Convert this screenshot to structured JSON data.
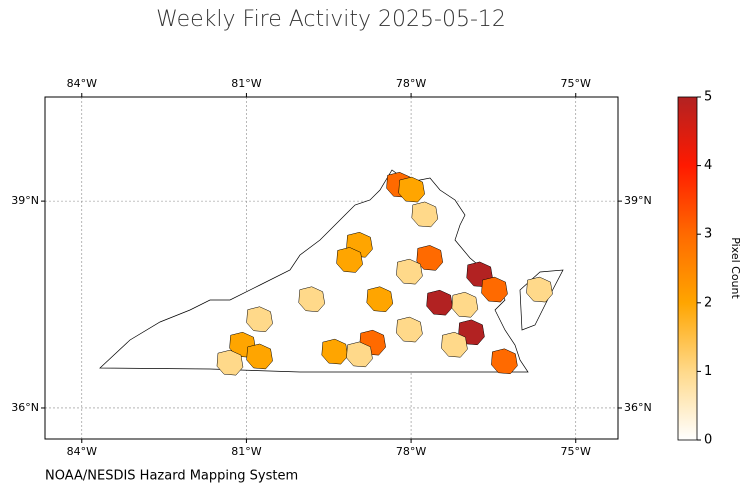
{
  "chart_data": {
    "type": "map",
    "title": "Weekly Fire Activity 2025-05-12",
    "source": "NOAA/NESDIS Hazard Mapping System",
    "xlim": [
      -84.67,
      -74.23
    ],
    "ylim": [
      35.55,
      40.51
    ],
    "xticks": [
      {
        "value": -84,
        "label": "84°W"
      },
      {
        "value": -81,
        "label": "81°W"
      },
      {
        "value": -78,
        "label": "78°W"
      },
      {
        "value": -75,
        "label": "75°W"
      }
    ],
    "yticks": [
      {
        "value": 36,
        "label": "36°N"
      },
      {
        "value": 39,
        "label": "39°N"
      }
    ],
    "grid": true,
    "colorbar": {
      "label": "Pixel Count",
      "clim": [
        0,
        5
      ],
      "ticks": [
        0,
        1,
        2,
        3,
        4,
        5
      ],
      "colors": [
        "#ffffff",
        "#ffd98a",
        "#ffa500",
        "#ff6a00",
        "#ff1a00",
        "#b22222"
      ]
    },
    "fire_areas": [
      {
        "lon": -78.21,
        "lat": 39.23,
        "value": 3
      },
      {
        "lon": -77.99,
        "lat": 39.16,
        "value": 2
      },
      {
        "lon": -78.94,
        "lat": 38.36,
        "value": 2
      },
      {
        "lon": -79.12,
        "lat": 38.14,
        "value": 2
      },
      {
        "lon": -77.75,
        "lat": 38.8,
        "value": 1
      },
      {
        "lon": -77.66,
        "lat": 38.17,
        "value": 3
      },
      {
        "lon": -76.75,
        "lat": 37.93,
        "value": 5
      },
      {
        "lon": -76.48,
        "lat": 37.71,
        "value": 3
      },
      {
        "lon": -78.03,
        "lat": 37.97,
        "value": 1
      },
      {
        "lon": -78.57,
        "lat": 37.57,
        "value": 2
      },
      {
        "lon": -79.81,
        "lat": 37.57,
        "value": 1
      },
      {
        "lon": -77.48,
        "lat": 37.52,
        "value": 5
      },
      {
        "lon": -77.02,
        "lat": 37.49,
        "value": 1
      },
      {
        "lon": -76.9,
        "lat": 37.09,
        "value": 5
      },
      {
        "lon": -77.21,
        "lat": 36.91,
        "value": 1
      },
      {
        "lon": -76.3,
        "lat": 36.67,
        "value": 3
      },
      {
        "lon": -78.7,
        "lat": 36.94,
        "value": 3
      },
      {
        "lon": -79.39,
        "lat": 36.81,
        "value": 2
      },
      {
        "lon": -78.94,
        "lat": 36.77,
        "value": 1
      },
      {
        "lon": -78.03,
        "lat": 37.13,
        "value": 1
      },
      {
        "lon": -80.76,
        "lat": 37.28,
        "value": 1
      },
      {
        "lon": -81.07,
        "lat": 36.91,
        "value": 2
      },
      {
        "lon": -80.76,
        "lat": 36.74,
        "value": 2
      },
      {
        "lon": -81.3,
        "lat": 36.65,
        "value": 1
      },
      {
        "lon": -75.66,
        "lat": 37.71,
        "value": 1
      }
    ]
  }
}
